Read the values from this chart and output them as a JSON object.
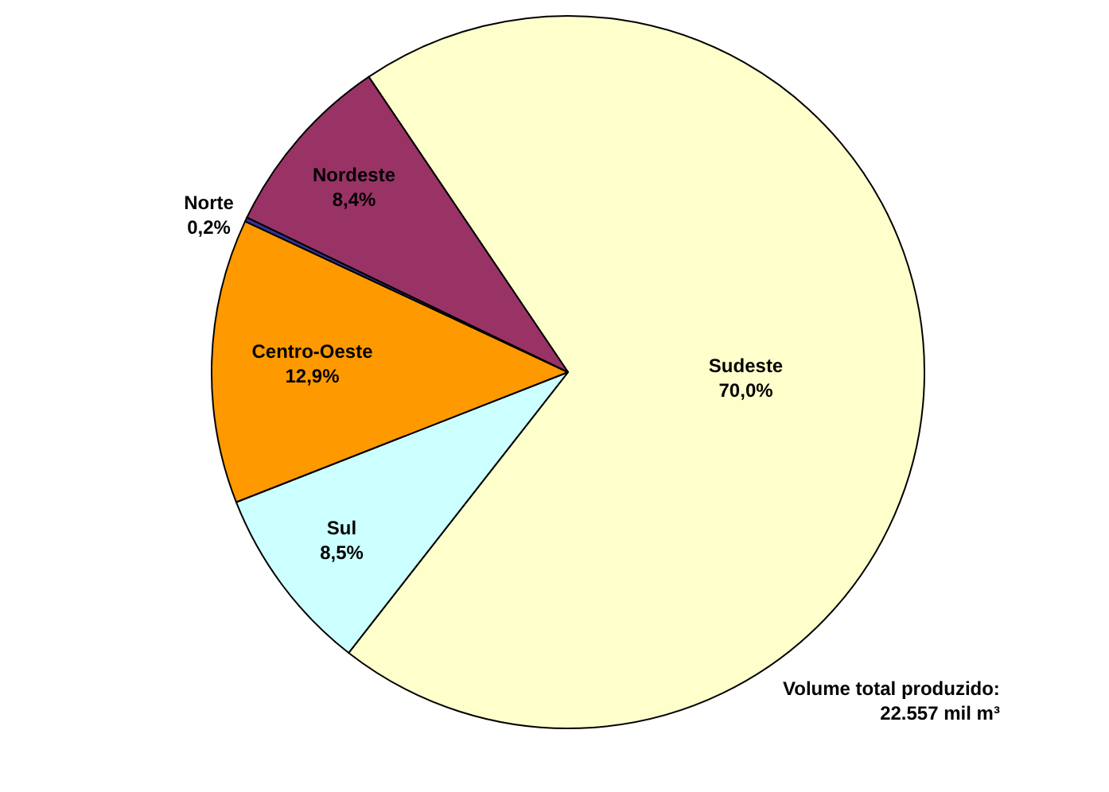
{
  "chart_data": {
    "type": "pie",
    "categories": [
      "Sudeste",
      "Sul",
      "Centro-Oeste",
      "Norte",
      "Nordeste"
    ],
    "values": [
      70.0,
      8.5,
      12.9,
      0.2,
      8.4
    ],
    "value_labels": [
      "70,0%",
      "8,5%",
      "12,9%",
      "0,2%",
      "8,4%"
    ],
    "colors": [
      "#ffffcc",
      "#ccffff",
      "#ff9900",
      "#333399",
      "#993366"
    ],
    "legend": false,
    "annotations": [
      "Volume total produzido:\n22.557 mil m³"
    ]
  }
}
